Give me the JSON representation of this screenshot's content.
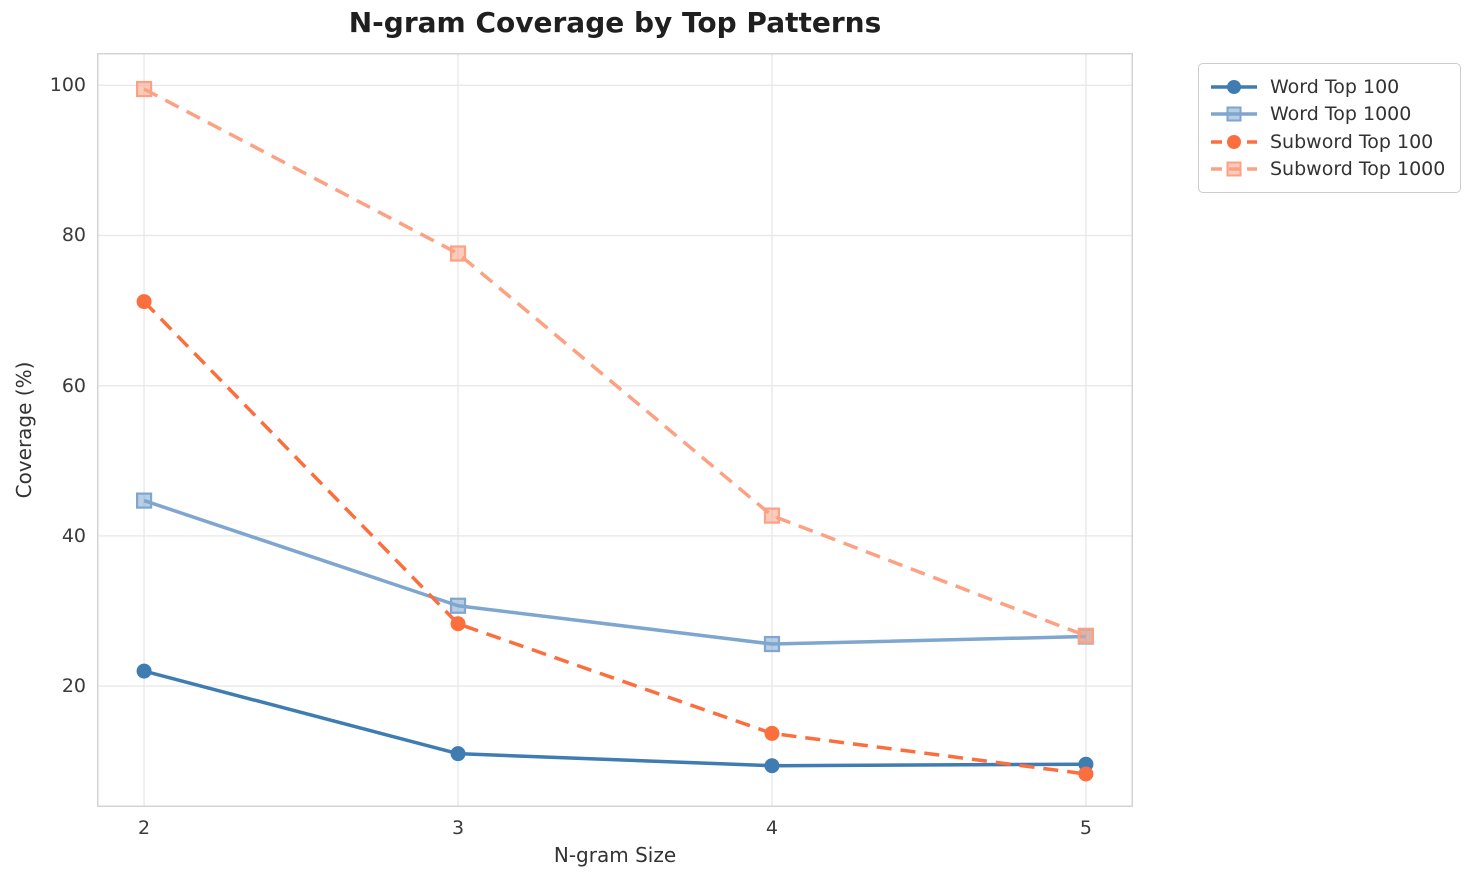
{
  "title": "N-gram Coverage by Top Patterns",
  "chart_data": {
    "type": "line",
    "title": "N-gram Coverage by Top Patterns",
    "xlabel": "N-gram Size",
    "ylabel": "Coverage (%)",
    "x": [
      2,
      3,
      4,
      5
    ],
    "xticks": [
      2,
      3,
      4,
      5
    ],
    "yticks": [
      20,
      40,
      60,
      80,
      100
    ],
    "xlim": [
      1.85,
      5.15
    ],
    "ylim": [
      3.9,
      104.3
    ],
    "grid": true,
    "grid_color": "#e9e9e9",
    "spine_color": "#d4d4d4",
    "legend_position": "outside-top-right",
    "series": [
      {
        "name": "Word Top 100",
        "values": [
          22.0,
          11.0,
          9.4,
          9.6
        ],
        "color": "#3e7cb1",
        "line": "solid",
        "marker": "circle"
      },
      {
        "name": "Word Top 1000",
        "values": [
          44.7,
          30.7,
          25.6,
          26.6
        ],
        "color": "#7ea6ce",
        "line": "solid",
        "marker": "square"
      },
      {
        "name": "Subword Top 100",
        "values": [
          71.2,
          28.3,
          13.7,
          8.3
        ],
        "color": "#fb6e3e",
        "line": "dashed",
        "marker": "circle"
      },
      {
        "name": "Subword Top 1000",
        "values": [
          99.5,
          77.6,
          42.7,
          26.7
        ],
        "color": "#fca183",
        "line": "dashed",
        "marker": "square"
      }
    ]
  }
}
